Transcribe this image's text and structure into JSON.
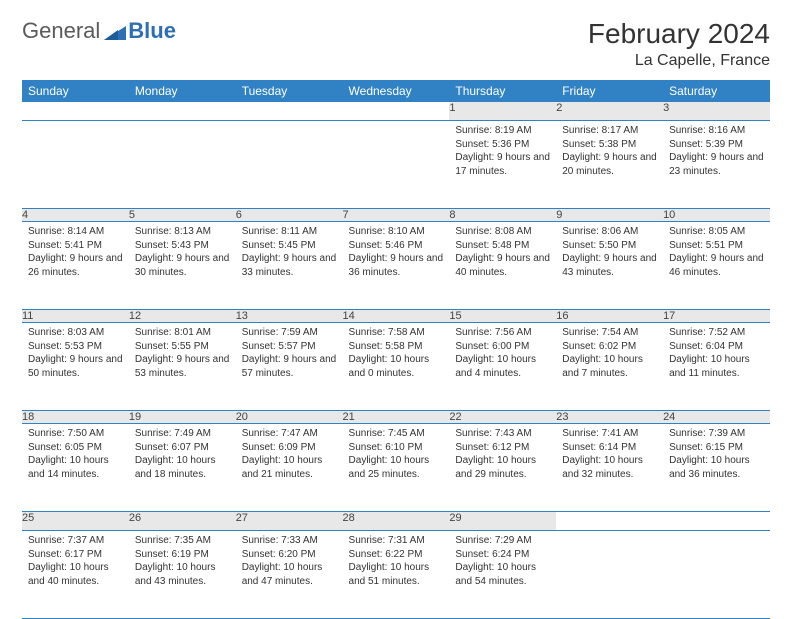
{
  "logo": {
    "textA": "General",
    "textB": "Blue",
    "mark_color": "#2d6fb5"
  },
  "title": "February 2024",
  "location": "La Capelle, France",
  "colors": {
    "header_bg": "#3182c5",
    "header_text": "#ffffff",
    "daynum_bg": "#e8e8e8",
    "border": "#3182c5",
    "body_text": "#333333"
  },
  "fonts": {
    "title_size": 28,
    "location_size": 16,
    "dayheader_size": 12,
    "daynum_size": 11,
    "body_size": 10
  },
  "day_headers": [
    "Sunday",
    "Monday",
    "Tuesday",
    "Wednesday",
    "Thursday",
    "Friday",
    "Saturday"
  ],
  "weeks": [
    [
      null,
      null,
      null,
      null,
      {
        "n": "1",
        "sunrise": "8:19 AM",
        "sunset": "5:36 PM",
        "dl": "9 hours and 17 minutes."
      },
      {
        "n": "2",
        "sunrise": "8:17 AM",
        "sunset": "5:38 PM",
        "dl": "9 hours and 20 minutes."
      },
      {
        "n": "3",
        "sunrise": "8:16 AM",
        "sunset": "5:39 PM",
        "dl": "9 hours and 23 minutes."
      }
    ],
    [
      {
        "n": "4",
        "sunrise": "8:14 AM",
        "sunset": "5:41 PM",
        "dl": "9 hours and 26 minutes."
      },
      {
        "n": "5",
        "sunrise": "8:13 AM",
        "sunset": "5:43 PM",
        "dl": "9 hours and 30 minutes."
      },
      {
        "n": "6",
        "sunrise": "8:11 AM",
        "sunset": "5:45 PM",
        "dl": "9 hours and 33 minutes."
      },
      {
        "n": "7",
        "sunrise": "8:10 AM",
        "sunset": "5:46 PM",
        "dl": "9 hours and 36 minutes."
      },
      {
        "n": "8",
        "sunrise": "8:08 AM",
        "sunset": "5:48 PM",
        "dl": "9 hours and 40 minutes."
      },
      {
        "n": "9",
        "sunrise": "8:06 AM",
        "sunset": "5:50 PM",
        "dl": "9 hours and 43 minutes."
      },
      {
        "n": "10",
        "sunrise": "8:05 AM",
        "sunset": "5:51 PM",
        "dl": "9 hours and 46 minutes."
      }
    ],
    [
      {
        "n": "11",
        "sunrise": "8:03 AM",
        "sunset": "5:53 PM",
        "dl": "9 hours and 50 minutes."
      },
      {
        "n": "12",
        "sunrise": "8:01 AM",
        "sunset": "5:55 PM",
        "dl": "9 hours and 53 minutes."
      },
      {
        "n": "13",
        "sunrise": "7:59 AM",
        "sunset": "5:57 PM",
        "dl": "9 hours and 57 minutes."
      },
      {
        "n": "14",
        "sunrise": "7:58 AM",
        "sunset": "5:58 PM",
        "dl": "10 hours and 0 minutes."
      },
      {
        "n": "15",
        "sunrise": "7:56 AM",
        "sunset": "6:00 PM",
        "dl": "10 hours and 4 minutes."
      },
      {
        "n": "16",
        "sunrise": "7:54 AM",
        "sunset": "6:02 PM",
        "dl": "10 hours and 7 minutes."
      },
      {
        "n": "17",
        "sunrise": "7:52 AM",
        "sunset": "6:04 PM",
        "dl": "10 hours and 11 minutes."
      }
    ],
    [
      {
        "n": "18",
        "sunrise": "7:50 AM",
        "sunset": "6:05 PM",
        "dl": "10 hours and 14 minutes."
      },
      {
        "n": "19",
        "sunrise": "7:49 AM",
        "sunset": "6:07 PM",
        "dl": "10 hours and 18 minutes."
      },
      {
        "n": "20",
        "sunrise": "7:47 AM",
        "sunset": "6:09 PM",
        "dl": "10 hours and 21 minutes."
      },
      {
        "n": "21",
        "sunrise": "7:45 AM",
        "sunset": "6:10 PM",
        "dl": "10 hours and 25 minutes."
      },
      {
        "n": "22",
        "sunrise": "7:43 AM",
        "sunset": "6:12 PM",
        "dl": "10 hours and 29 minutes."
      },
      {
        "n": "23",
        "sunrise": "7:41 AM",
        "sunset": "6:14 PM",
        "dl": "10 hours and 32 minutes."
      },
      {
        "n": "24",
        "sunrise": "7:39 AM",
        "sunset": "6:15 PM",
        "dl": "10 hours and 36 minutes."
      }
    ],
    [
      {
        "n": "25",
        "sunrise": "7:37 AM",
        "sunset": "6:17 PM",
        "dl": "10 hours and 40 minutes."
      },
      {
        "n": "26",
        "sunrise": "7:35 AM",
        "sunset": "6:19 PM",
        "dl": "10 hours and 43 minutes."
      },
      {
        "n": "27",
        "sunrise": "7:33 AM",
        "sunset": "6:20 PM",
        "dl": "10 hours and 47 minutes."
      },
      {
        "n": "28",
        "sunrise": "7:31 AM",
        "sunset": "6:22 PM",
        "dl": "10 hours and 51 minutes."
      },
      {
        "n": "29",
        "sunrise": "7:29 AM",
        "sunset": "6:24 PM",
        "dl": "10 hours and 54 minutes."
      },
      null,
      null
    ]
  ],
  "labels": {
    "sunrise": "Sunrise: ",
    "sunset": "Sunset: ",
    "daylight": "Daylight: "
  }
}
